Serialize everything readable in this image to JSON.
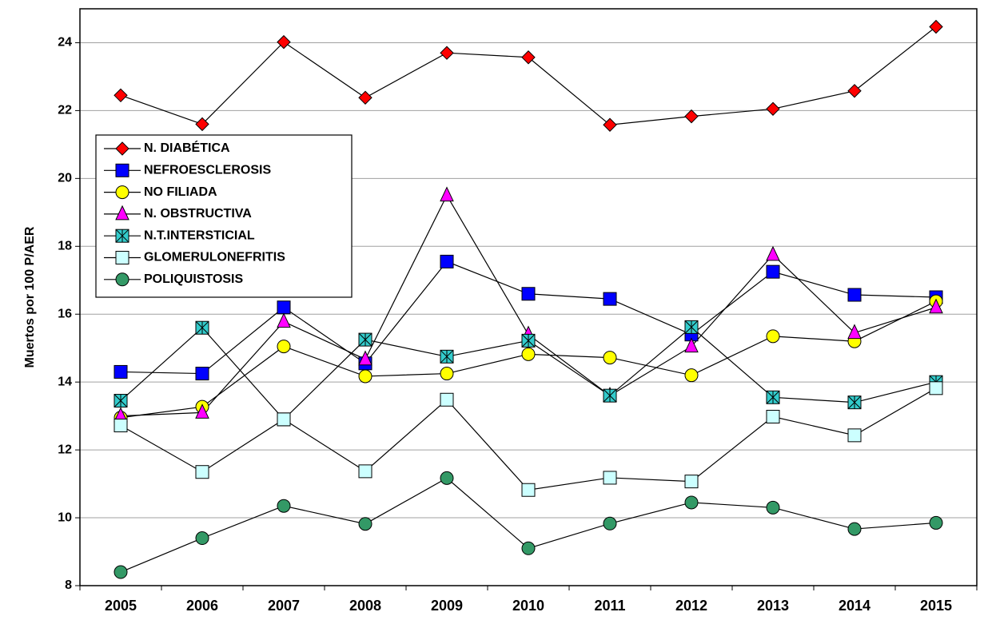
{
  "chart_data": {
    "type": "line",
    "y_label": "Muertos por 100 P/AER",
    "categories": [
      "2005",
      "2006",
      "2007",
      "2008",
      "2009",
      "2010",
      "2011",
      "2012",
      "2013",
      "2014",
      "2015"
    ],
    "ylim": [
      8,
      25
    ],
    "yticks": [
      8,
      10,
      12,
      14,
      16,
      18,
      20,
      22,
      24
    ],
    "grid": true,
    "series": [
      {
        "name": "N. DIABÉTICA",
        "color": "#ff0000",
        "marker": "diamond",
        "values": [
          22.45,
          21.6,
          24.02,
          22.38,
          23.7,
          23.57,
          21.58,
          21.83,
          22.05,
          22.58,
          24.47
        ]
      },
      {
        "name": "NEFROESCLEROSIS",
        "color": "#0000ff",
        "marker": "square",
        "values": [
          14.3,
          14.25,
          16.2,
          14.55,
          17.55,
          16.6,
          16.45,
          15.4,
          17.25,
          16.57,
          16.5
        ]
      },
      {
        "name": "NO FILIADA",
        "color": "#ffff00",
        "marker": "circle",
        "values": [
          12.95,
          13.27,
          15.05,
          14.17,
          14.25,
          14.82,
          14.72,
          14.2,
          15.35,
          15.2,
          16.38
        ]
      },
      {
        "name": "N. OBSTRUCTIVA",
        "color": "#ff00ff",
        "marker": "triangle",
        "values": [
          13.0,
          13.1,
          15.78,
          14.67,
          19.5,
          15.4,
          13.6,
          15.05,
          17.75,
          15.45,
          16.2
        ]
      },
      {
        "name": "N.T.INTERSTICIAL",
        "color": "#33cccc",
        "marker": "star",
        "values": [
          13.45,
          15.6,
          12.9,
          15.25,
          14.75,
          15.22,
          13.6,
          15.62,
          13.55,
          13.4,
          14.0
        ]
      },
      {
        "name": "GLOMERULONEFRITIS",
        "color": "#ccffff",
        "marker": "square",
        "values": [
          12.72,
          11.35,
          12.9,
          11.37,
          13.48,
          10.82,
          11.18,
          11.07,
          12.98,
          12.43,
          13.82
        ]
      },
      {
        "name": "POLIQUISTOSIS",
        "color": "#339966",
        "marker": "circle",
        "values": [
          8.4,
          9.4,
          10.35,
          9.82,
          11.17,
          9.1,
          9.83,
          10.45,
          10.3,
          9.67,
          9.85
        ]
      }
    ]
  }
}
